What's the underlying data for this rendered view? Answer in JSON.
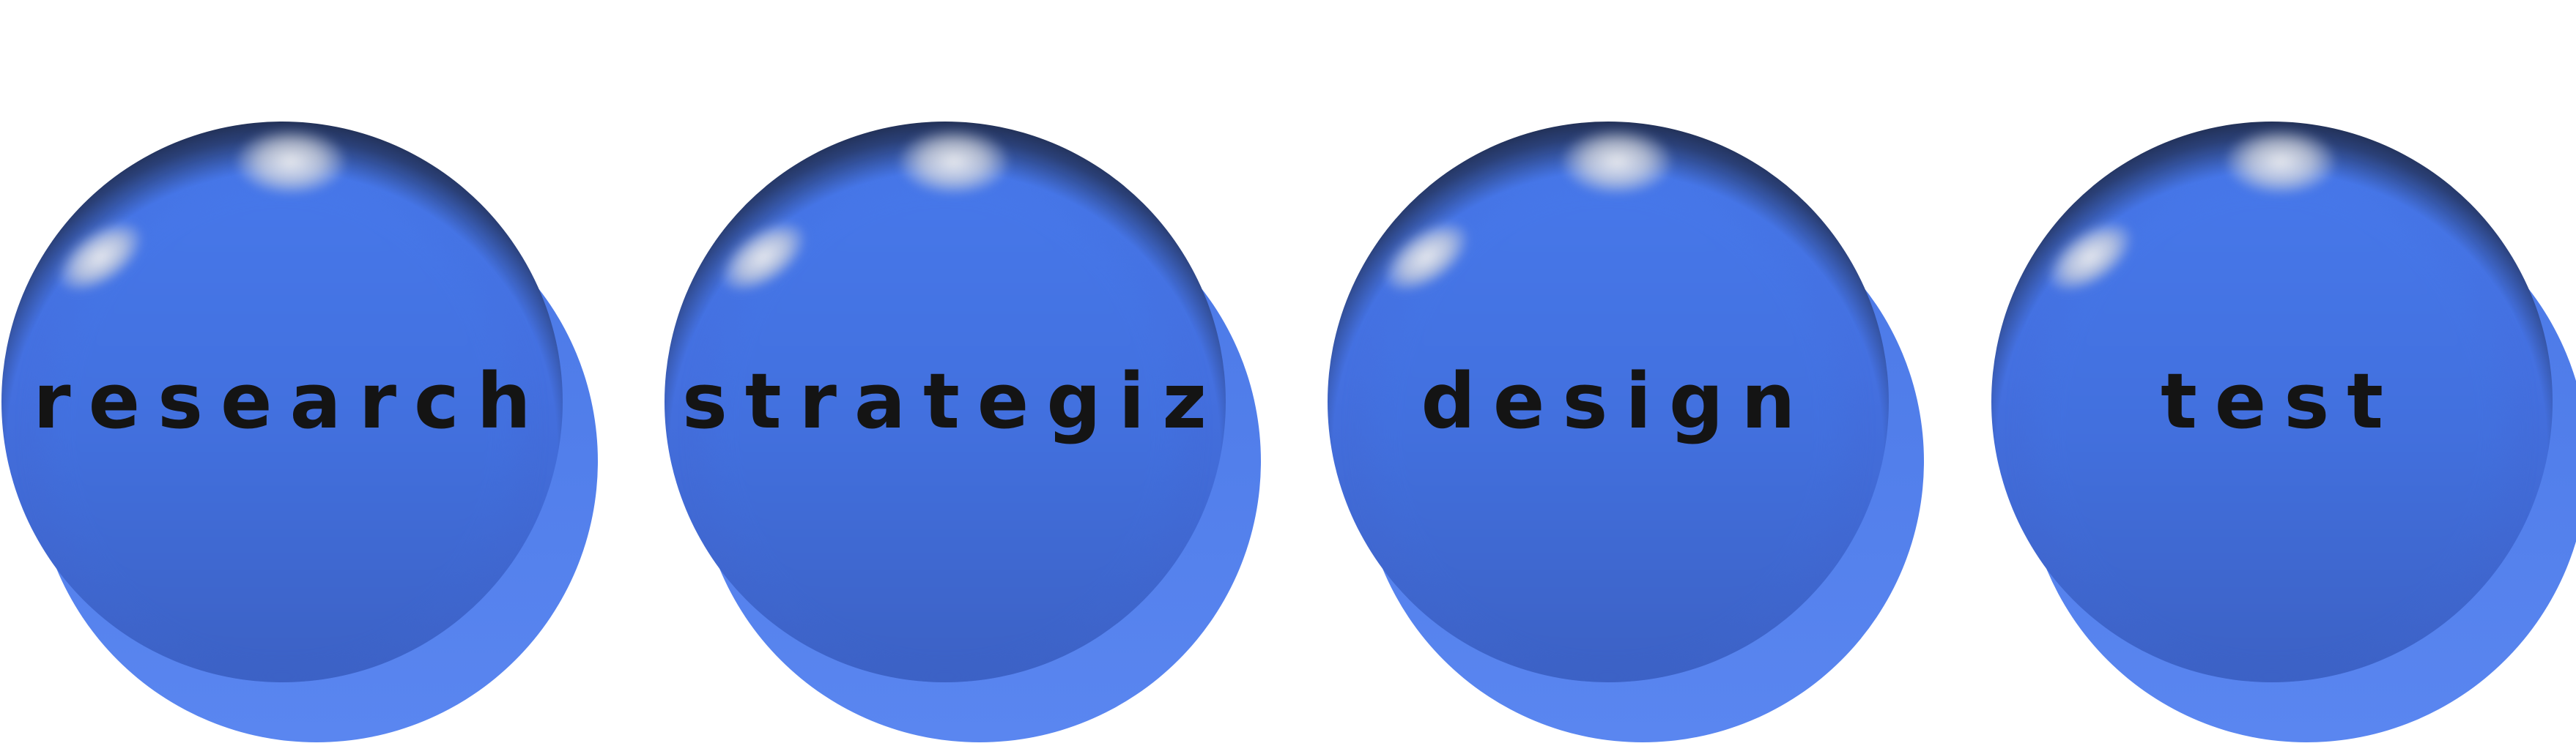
{
  "diagram": {
    "steps": [
      {
        "label": "research"
      },
      {
        "label": "strategize"
      },
      {
        "label": "design"
      },
      {
        "label": "test"
      }
    ],
    "colors": {
      "circle_front_top": "#4677e9",
      "circle_front_bottom": "#3d62c6",
      "circle_back": "#5a86f0",
      "rim": "#161618",
      "text": "#141414",
      "background": "#ffffff"
    }
  }
}
